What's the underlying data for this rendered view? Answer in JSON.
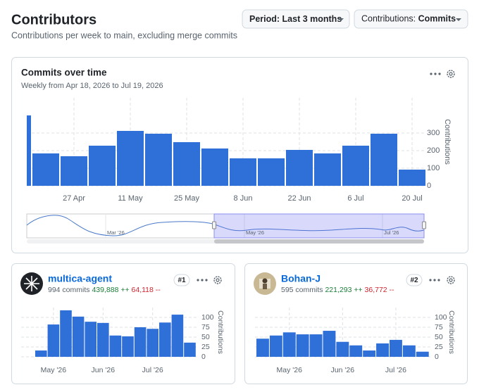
{
  "header": {
    "title": "Contributors",
    "subtitle": "Contributions per week to main, excluding merge commits",
    "period_button": "Period: Last 3 months",
    "contributions_label": "Contributions:",
    "contributions_value": "Commits"
  },
  "navigator": {
    "labels": [
      "Mar '26",
      "May '26",
      "Jul '26"
    ]
  },
  "contributors": [
    {
      "name": "multica-agent",
      "commits": "994 commits",
      "additions": "439,888 ++",
      "deletions": "64,118 --",
      "rank": "#1"
    },
    {
      "name": "Bohan-J",
      "commits": "595 commits",
      "additions": "221,293 ++",
      "deletions": "36,772 --",
      "rank": "#2"
    }
  ],
  "chart_data": [
    {
      "type": "bar",
      "title": "Commits over time",
      "subtitle": "Weekly from Apr 18, 2026 to Jul 19, 2026",
      "y_label": "Contributions",
      "categories": [
        null,
        null,
        "27 Apr",
        null,
        "11 May",
        null,
        "25 May",
        null,
        "8 Jun",
        null,
        "22 Jun",
        null,
        "6 Jul",
        null,
        "20 Jul"
      ],
      "values": [
        400,
        184,
        168,
        228,
        312,
        296,
        248,
        212,
        156,
        156,
        204,
        184,
        228,
        296,
        92
      ],
      "color": "#2f6fd8",
      "ylim": [
        0,
        500
      ],
      "yticks": [
        0,
        100,
        200,
        300
      ],
      "grid": true
    },
    {
      "type": "bar",
      "y_label": "Contributions",
      "categories": [
        null,
        "May '26",
        null,
        null,
        null,
        "Jun '26",
        null,
        null,
        null,
        "Jul '26",
        null,
        null,
        null
      ],
      "values": [
        16,
        82,
        118,
        102,
        89,
        86,
        54,
        52,
        75,
        71,
        87,
        107,
        36
      ],
      "color": "#2f6fd8",
      "ylim": [
        0,
        125
      ],
      "yticks": [
        0,
        25,
        50,
        75,
        100
      ],
      "grid": true
    },
    {
      "type": "bar",
      "y_label": "Contributions",
      "categories": [
        null,
        null,
        "May '26",
        null,
        null,
        null,
        "Jun '26",
        null,
        null,
        null,
        "Jul '26",
        null,
        null
      ],
      "values": [
        46,
        54,
        62,
        57,
        57,
        66,
        38,
        29,
        16,
        34,
        43,
        29,
        13
      ],
      "color": "#2f6fd8",
      "ylim": [
        0,
        125
      ],
      "yticks": [
        0,
        25,
        50,
        75,
        100
      ],
      "grid": true
    }
  ]
}
